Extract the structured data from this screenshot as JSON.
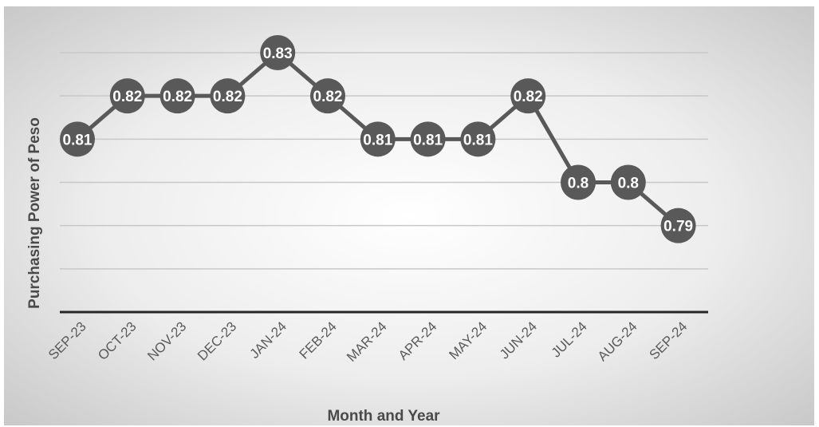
{
  "chart_data": {
    "type": "line",
    "title": "",
    "xlabel": "Month and Year",
    "ylabel": "Purchasing Power of Peso",
    "categories": [
      "SEP-23",
      "OCT-23",
      "NOV-23",
      "DEC-23",
      "JAN-24",
      "FEB-24",
      "MAR-24",
      "APR-24",
      "MAY-24",
      "JUN-24",
      "JUL-24",
      "AUG-24",
      "SEP-24"
    ],
    "series": [
      {
        "values": [
          0.81,
          0.82,
          0.82,
          0.82,
          0.83,
          0.82,
          0.81,
          0.81,
          0.81,
          0.82,
          0.8,
          0.8,
          0.79
        ]
      }
    ],
    "data_labels": [
      "0.81",
      "0.82",
      "0.82",
      "0.82",
      "0.83",
      "0.82",
      "0.81",
      "0.81",
      "0.81",
      "0.82",
      "0.8",
      "0.8",
      "0.79"
    ],
    "ylim": [
      0.77,
      0.83
    ],
    "y_gridlines": [
      0.77,
      0.78,
      0.79,
      0.8,
      0.81,
      0.82,
      0.83
    ],
    "grid": true,
    "y_tick_labels_visible": false,
    "legend": "none",
    "colors": {
      "line": "#595959",
      "marker": "#595959",
      "gridline": "#c8c8c8",
      "baseline": "#262626",
      "background_center": "#ffffff",
      "background_edge": "#c9c9c9"
    }
  }
}
